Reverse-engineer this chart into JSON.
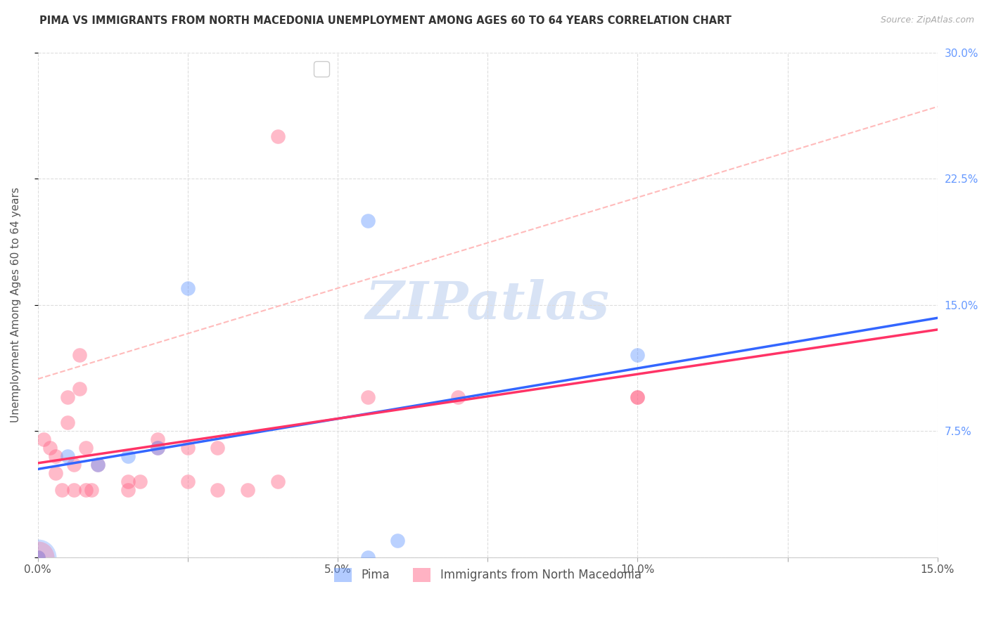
{
  "title": "PIMA VS IMMIGRANTS FROM NORTH MACEDONIA UNEMPLOYMENT AMONG AGES 60 TO 64 YEARS CORRELATION CHART",
  "source": "Source: ZipAtlas.com",
  "ylabel": "Unemployment Among Ages 60 to 64 years",
  "xlim": [
    0.0,
    0.15
  ],
  "ylim": [
    0.0,
    0.3
  ],
  "xticks": [
    0.0,
    0.025,
    0.05,
    0.075,
    0.1,
    0.125,
    0.15
  ],
  "xtick_labels": [
    "0.0%",
    "",
    "5.0%",
    "",
    "10.0%",
    "",
    "15.0%"
  ],
  "ytick_labels_right": [
    "",
    "7.5%",
    "15.0%",
    "22.5%",
    "30.0%"
  ],
  "yticks_right": [
    0.0,
    0.075,
    0.15,
    0.225,
    0.3
  ],
  "watermark": "ZIPatlas",
  "pima_color": "#6699ff",
  "nmacedonia_color": "#ff6688",
  "pima_points": [
    [
      0.0,
      0.0
    ],
    [
      0.005,
      0.06
    ],
    [
      0.01,
      0.055
    ],
    [
      0.015,
      0.06
    ],
    [
      0.02,
      0.065
    ],
    [
      0.025,
      0.16
    ],
    [
      0.055,
      0.2
    ],
    [
      0.06,
      0.01
    ],
    [
      0.1,
      0.12
    ],
    [
      0.055,
      0.0
    ]
  ],
  "nmacedonia_points": [
    [
      0.0,
      0.0
    ],
    [
      0.001,
      0.07
    ],
    [
      0.002,
      0.065
    ],
    [
      0.003,
      0.05
    ],
    [
      0.003,
      0.06
    ],
    [
      0.004,
      0.04
    ],
    [
      0.005,
      0.08
    ],
    [
      0.005,
      0.095
    ],
    [
      0.006,
      0.04
    ],
    [
      0.006,
      0.055
    ],
    [
      0.007,
      0.1
    ],
    [
      0.007,
      0.12
    ],
    [
      0.008,
      0.065
    ],
    [
      0.008,
      0.04
    ],
    [
      0.009,
      0.04
    ],
    [
      0.01,
      0.055
    ],
    [
      0.015,
      0.04
    ],
    [
      0.015,
      0.045
    ],
    [
      0.017,
      0.045
    ],
    [
      0.02,
      0.065
    ],
    [
      0.02,
      0.07
    ],
    [
      0.025,
      0.065
    ],
    [
      0.025,
      0.045
    ],
    [
      0.03,
      0.065
    ],
    [
      0.03,
      0.04
    ],
    [
      0.035,
      0.04
    ],
    [
      0.04,
      0.045
    ],
    [
      0.04,
      0.25
    ],
    [
      0.055,
      0.095
    ],
    [
      0.07,
      0.095
    ],
    [
      0.1,
      0.095
    ],
    [
      0.1,
      0.095
    ]
  ],
  "pima_line_color": "#3366ff",
  "nmacedonia_line_color": "#ff3366",
  "nmacedonia_dashed_color": "#ffbbbb",
  "background_color": "#ffffff",
  "grid_color": "#dddddd"
}
